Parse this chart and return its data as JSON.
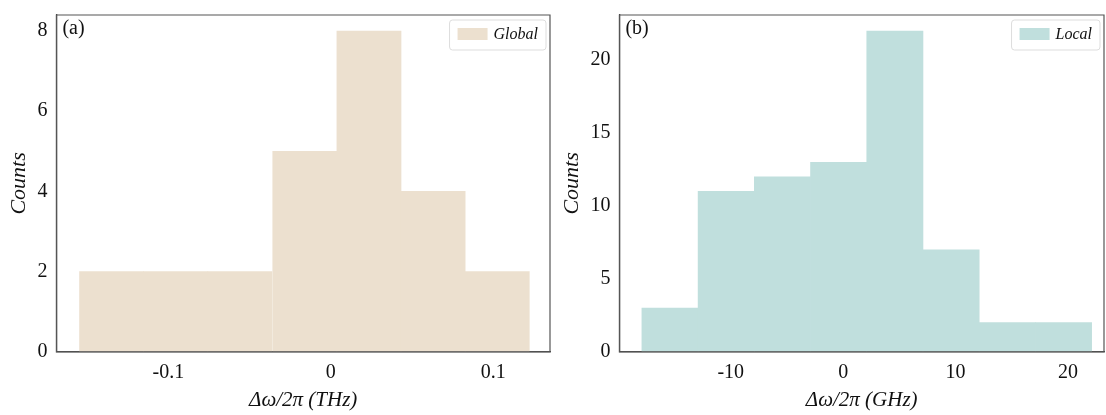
{
  "chart_data": [
    {
      "type": "histogram",
      "annotations": [
        "(a)"
      ],
      "xlabel": "Δω/2π (THz)",
      "ylabel": "Counts",
      "bins": [
        -0.155,
        -0.115,
        -0.076,
        -0.036,
        0.004,
        0.043,
        0.083,
        0.122
      ],
      "series": [
        {
          "name": "Global",
          "color": "#ece0cf",
          "values": [
            2,
            2,
            2,
            5,
            8,
            4,
            2
          ]
        }
      ],
      "xlim": [
        -0.169,
        0.135
      ],
      "xticks": [
        -0.1,
        0,
        0.1
      ],
      "ylim": [
        0,
        8.4
      ],
      "yticks": [
        0,
        2,
        4,
        6,
        8
      ],
      "legend": "top right",
      "grid": false
    },
    {
      "type": "histogram",
      "annotations": [
        "(b)"
      ],
      "xlabel": "Δω/2π (GHz)",
      "ylabel": "Counts",
      "bins": [
        -17.9,
        -12.9,
        -7.9,
        -2.9,
        2.1,
        7.1,
        12.1,
        17.1,
        22.1
      ],
      "series": [
        {
          "name": "Local",
          "color": "#c0dfdd",
          "values": [
            3,
            11,
            12,
            13,
            22,
            7,
            2,
            2
          ]
        }
      ],
      "xlim": [
        -19.9,
        23.2
      ],
      "xticks": [
        -10,
        0,
        10,
        20
      ],
      "ylim": [
        0,
        23.1
      ],
      "yticks": [
        0,
        5,
        10,
        15,
        20
      ],
      "legend": "top right",
      "grid": false
    }
  ]
}
